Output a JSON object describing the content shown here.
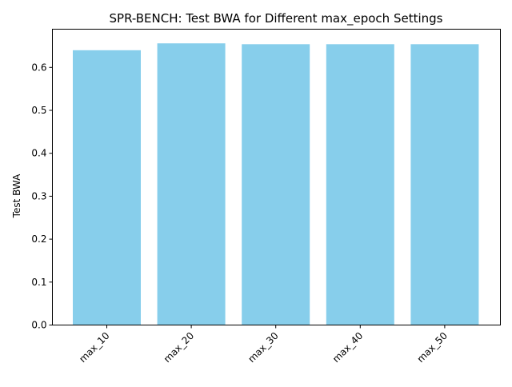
{
  "chart_data": {
    "type": "bar",
    "title": "SPR-BENCH: Test BWA for Different max_epoch Settings",
    "xlabel": "",
    "ylabel": "Test BWA",
    "categories": [
      "max_10",
      "max_20",
      "max_30",
      "max_40",
      "max_50"
    ],
    "values": [
      0.64,
      0.656,
      0.654,
      0.654,
      0.654
    ],
    "yticks": [
      "0.0",
      "0.1",
      "0.2",
      "0.3",
      "0.4",
      "0.5",
      "0.6"
    ],
    "ylim": [
      0,
      0.689
    ],
    "bar_color": "#87ceeb",
    "grid": false,
    "legend": "none"
  }
}
